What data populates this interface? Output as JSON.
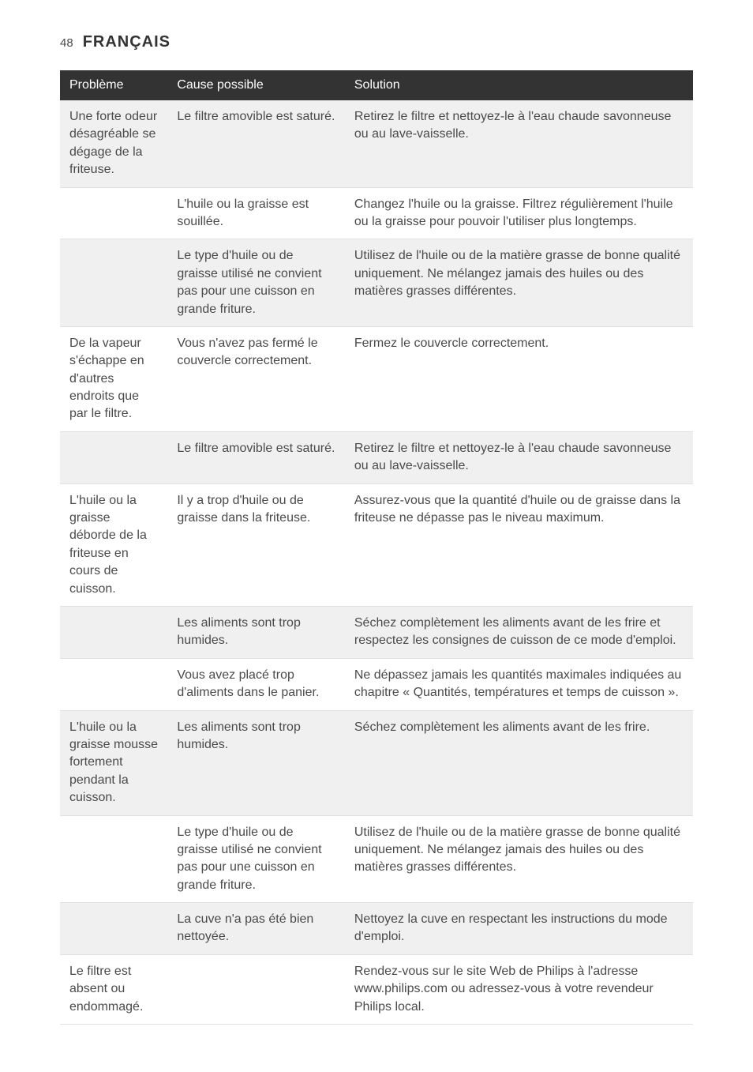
{
  "header": {
    "page_number": "48",
    "title": "FRANÇAIS"
  },
  "table": {
    "columns": [
      "Problème",
      "Cause possible",
      "Solution"
    ],
    "column_widths": [
      "17%",
      "28%",
      "55%"
    ],
    "header_bg": "#333333",
    "header_text_color": "#ffffff",
    "odd_row_bg": "#f0f0f0",
    "even_row_bg": "#ffffff",
    "border_color": "#e0e0e0",
    "text_color": "#4a4a4a",
    "cell_fontsize": 16,
    "rows": [
      {
        "problem": "Une forte odeur désagréable se dégage de la friteuse.",
        "cause": "Le filtre amovible est saturé.",
        "solution": "Retirez le filtre et nettoyez-le à l'eau chaude savonneuse ou au lave-vaisselle."
      },
      {
        "problem": "",
        "cause": "L'huile ou la graisse est souillée.",
        "solution": "Changez l'huile ou la graisse. Filtrez régulièrement l'huile ou la graisse pour pouvoir l'utiliser plus longtemps."
      },
      {
        "problem": "",
        "cause": "Le type d'huile ou de graisse utilisé ne convient pas pour une cuisson en grande friture.",
        "solution": "Utilisez de l'huile ou de la matière grasse de bonne qualité uniquement. Ne mélangez jamais des huiles ou des matières grasses différentes."
      },
      {
        "problem": "De la vapeur s'échappe en d'autres endroits que par le filtre.",
        "cause": "Vous n'avez pas fermé le couvercle correctement.",
        "solution": "Fermez le couvercle correctement."
      },
      {
        "problem": "",
        "cause": "Le filtre amovible est saturé.",
        "solution": "Retirez le filtre et nettoyez-le à l'eau chaude savonneuse ou au lave-vaisselle."
      },
      {
        "problem": "L'huile ou la graisse déborde de la friteuse en cours de cuisson.",
        "cause": "Il y a trop d'huile ou de graisse dans la friteuse.",
        "solution": "Assurez-vous que la quantité d'huile ou de graisse dans la friteuse ne dépasse pas le niveau maximum."
      },
      {
        "problem": "",
        "cause": "Les aliments sont trop humides.",
        "solution": "Séchez complètement les aliments avant de les frire et respectez les consignes de cuisson de ce mode d'emploi."
      },
      {
        "problem": "",
        "cause": "Vous avez placé trop d'aliments dans le panier.",
        "solution": "Ne dépassez jamais les quantités maximales indiquées au chapitre « Quantités, températures et temps de cuisson »."
      },
      {
        "problem": "L'huile ou la graisse mousse fortement pendant la cuisson.",
        "cause": "Les aliments sont trop humides.",
        "solution": "Séchez complètement les aliments avant de les frire."
      },
      {
        "problem": "",
        "cause": "Le type d'huile ou de graisse utilisé ne convient pas pour une cuisson en grande friture.",
        "solution": "Utilisez de l'huile ou de la matière grasse de bonne qualité uniquement. Ne mélangez jamais des huiles ou des matières grasses différentes."
      },
      {
        "problem": "",
        "cause": "La cuve n'a pas été bien nettoyée.",
        "solution": "Nettoyez la cuve en respectant les instructions du mode d'emploi."
      },
      {
        "problem": "Le filtre est absent ou endommagé.",
        "cause": "",
        "solution": "Rendez-vous sur le site Web de Philips à l'adresse www.philips.com ou adressez-vous à votre revendeur Philips local."
      }
    ]
  }
}
